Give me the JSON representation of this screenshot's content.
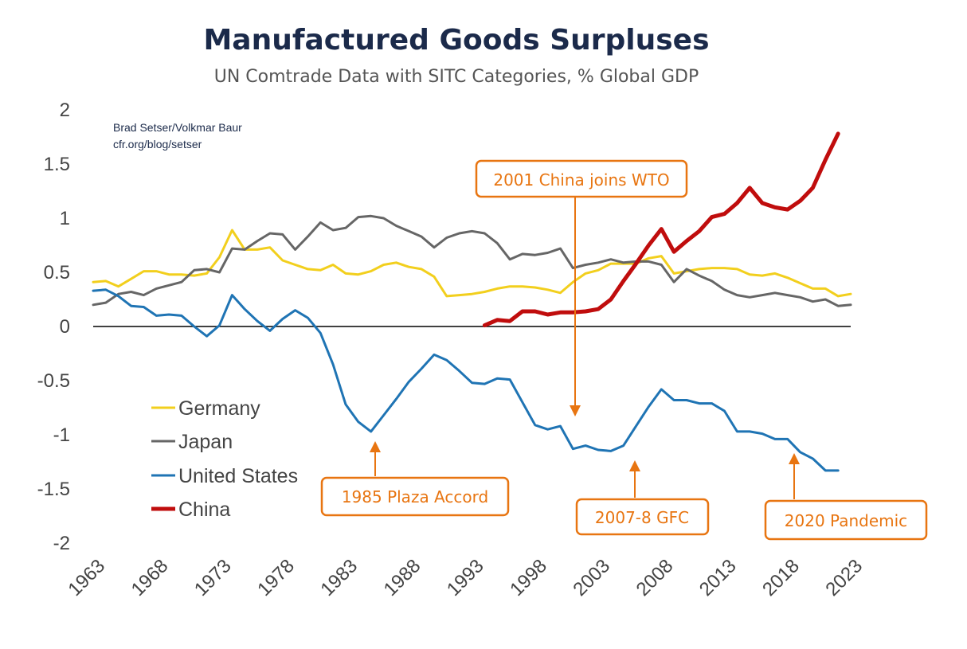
{
  "chart_data": {
    "type": "line",
    "title": "Manufactured Goods Surpluses",
    "subtitle": "UN Comtrade Data with SITC Categories, % Global GDP",
    "credit": [
      "Brad Setser/Volkmar Baur",
      "cfr.org/blog/setser"
    ],
    "xlabel": "",
    "ylabel": "",
    "xlim": [
      1963,
      2023
    ],
    "ylim": [
      -2,
      2
    ],
    "x_ticks": [
      "1963",
      "1968",
      "1973",
      "1978",
      "1983",
      "1988",
      "1993",
      "1998",
      "2003",
      "2008",
      "2013",
      "2018",
      "2023"
    ],
    "y_ticks": [
      "2",
      "1.5",
      "1",
      "0.5",
      "0",
      "-0.5",
      "-1",
      "-1.5",
      "-2"
    ],
    "grid": false,
    "legend_position": "bottom-left",
    "series": [
      {
        "name": "Germany",
        "color": "#f2cf1d",
        "x": [
          1963,
          1964,
          1965,
          1966,
          1967,
          1968,
          1969,
          1970,
          1971,
          1972,
          1973,
          1974,
          1975,
          1976,
          1977,
          1978,
          1979,
          1980,
          1981,
          1982,
          1983,
          1984,
          1985,
          1986,
          1987,
          1988,
          1989,
          1990,
          1991,
          1992,
          1993,
          1994,
          1995,
          1996,
          1997,
          1998,
          1999,
          2000,
          2001,
          2002,
          2003,
          2004,
          2005,
          2006,
          2007,
          2008,
          2009,
          2010,
          2011,
          2012,
          2013,
          2014,
          2015,
          2016,
          2017,
          2018,
          2019,
          2020,
          2021,
          2022,
          2023
        ],
        "values": [
          0.41,
          0.42,
          0.37,
          0.44,
          0.51,
          0.51,
          0.48,
          0.48,
          0.47,
          0.49,
          0.64,
          0.89,
          0.71,
          0.71,
          0.73,
          0.61,
          0.57,
          0.53,
          0.52,
          0.57,
          0.49,
          0.48,
          0.51,
          0.57,
          0.59,
          0.55,
          0.53,
          0.46,
          0.28,
          0.29,
          0.3,
          0.32,
          0.35,
          0.37,
          0.37,
          0.36,
          0.34,
          0.31,
          0.41,
          0.49,
          0.52,
          0.58,
          0.58,
          0.58,
          0.63,
          0.65,
          0.49,
          0.51,
          0.53,
          0.54,
          0.54,
          0.53,
          0.48,
          0.47,
          0.49,
          0.45,
          0.4,
          0.35,
          0.35,
          0.28,
          0.3
        ]
      },
      {
        "name": "Japan",
        "color": "#666666",
        "x": [
          1963,
          1964,
          1965,
          1966,
          1967,
          1968,
          1969,
          1970,
          1971,
          1972,
          1973,
          1974,
          1975,
          1976,
          1977,
          1978,
          1979,
          1980,
          1981,
          1982,
          1983,
          1984,
          1985,
          1986,
          1987,
          1988,
          1989,
          1990,
          1991,
          1992,
          1993,
          1994,
          1995,
          1996,
          1997,
          1998,
          1999,
          2000,
          2001,
          2002,
          2003,
          2004,
          2005,
          2006,
          2007,
          2008,
          2009,
          2010,
          2011,
          2012,
          2013,
          2014,
          2015,
          2016,
          2017,
          2018,
          2019,
          2020,
          2021,
          2022,
          2023
        ],
        "values": [
          0.2,
          0.22,
          0.3,
          0.32,
          0.29,
          0.35,
          0.38,
          0.41,
          0.52,
          0.53,
          0.5,
          0.72,
          0.71,
          0.79,
          0.86,
          0.85,
          0.71,
          0.83,
          0.96,
          0.89,
          0.91,
          1.01,
          1.02,
          1.0,
          0.93,
          0.88,
          0.83,
          0.73,
          0.82,
          0.86,
          0.88,
          0.86,
          0.77,
          0.62,
          0.67,
          0.66,
          0.68,
          0.72,
          0.54,
          0.57,
          0.59,
          0.62,
          0.59,
          0.6,
          0.6,
          0.57,
          0.41,
          0.53,
          0.47,
          0.42,
          0.34,
          0.29,
          0.27,
          0.29,
          0.31,
          0.29,
          0.27,
          0.23,
          0.25,
          0.19,
          0.2
        ]
      },
      {
        "name": "United States",
        "color": "#1f74b4",
        "x": [
          1963,
          1964,
          1965,
          1966,
          1967,
          1968,
          1969,
          1970,
          1971,
          1972,
          1973,
          1974,
          1975,
          1976,
          1977,
          1978,
          1979,
          1980,
          1981,
          1982,
          1983,
          1984,
          1985,
          1986,
          1987,
          1988,
          1989,
          1990,
          1991,
          1992,
          1993,
          1994,
          1995,
          1996,
          1997,
          1998,
          1999,
          2000,
          2001,
          2002,
          2003,
          2004,
          2005,
          2006,
          2007,
          2008,
          2009,
          2010,
          2011,
          2012,
          2013,
          2014,
          2015,
          2016,
          2017,
          2018,
          2019,
          2020,
          2021,
          2022
        ],
        "values": [
          0.33,
          0.34,
          0.28,
          0.19,
          0.18,
          0.1,
          0.11,
          0.1,
          0.0,
          -0.09,
          0.01,
          0.29,
          0.16,
          0.05,
          -0.04,
          0.07,
          0.15,
          0.08,
          -0.06,
          -0.35,
          -0.72,
          -0.88,
          -0.97,
          -0.82,
          -0.67,
          -0.51,
          -0.39,
          -0.26,
          -0.31,
          -0.41,
          -0.52,
          -0.53,
          -0.48,
          -0.49,
          -0.7,
          -0.91,
          -0.95,
          -0.92,
          -1.13,
          -1.1,
          -1.14,
          -1.15,
          -1.1,
          -0.92,
          -0.74,
          -0.58,
          -0.68,
          -0.68,
          -0.71,
          -0.71,
          -0.78,
          -0.97,
          -0.97,
          -0.99,
          -1.04,
          -1.04,
          -1.16,
          -1.22,
          -1.33,
          -1.33
        ]
      },
      {
        "name": "China",
        "color": "#c00d0d",
        "x": [
          1994,
          1995,
          1996,
          1997,
          1998,
          1999,
          2000,
          2001,
          2002,
          2003,
          2004,
          2005,
          2006,
          2007,
          2008,
          2009,
          2010,
          2011,
          2012,
          2013,
          2014,
          2015,
          2016,
          2017,
          2018,
          2019,
          2020,
          2021,
          2022
        ],
        "values": [
          0.01,
          0.06,
          0.05,
          0.14,
          0.14,
          0.11,
          0.13,
          0.13,
          0.14,
          0.16,
          0.25,
          0.42,
          0.58,
          0.75,
          0.9,
          0.69,
          0.79,
          0.88,
          1.01,
          1.04,
          1.14,
          1.28,
          1.14,
          1.1,
          1.08,
          1.16,
          1.28,
          1.54,
          1.78
        ]
      }
    ],
    "annotations": [
      {
        "text": "2001 China joins WTO",
        "year": 2001,
        "arrow": "down"
      },
      {
        "text": "1985 Plaza Accord",
        "year": 1985,
        "arrow": "up"
      },
      {
        "text": "2007-8 GFC",
        "year": 2005,
        "arrow": "up"
      },
      {
        "text": "2020 Pandemic",
        "year": 2019,
        "arrow": "up"
      }
    ],
    "annotation_color": "#e87511"
  }
}
